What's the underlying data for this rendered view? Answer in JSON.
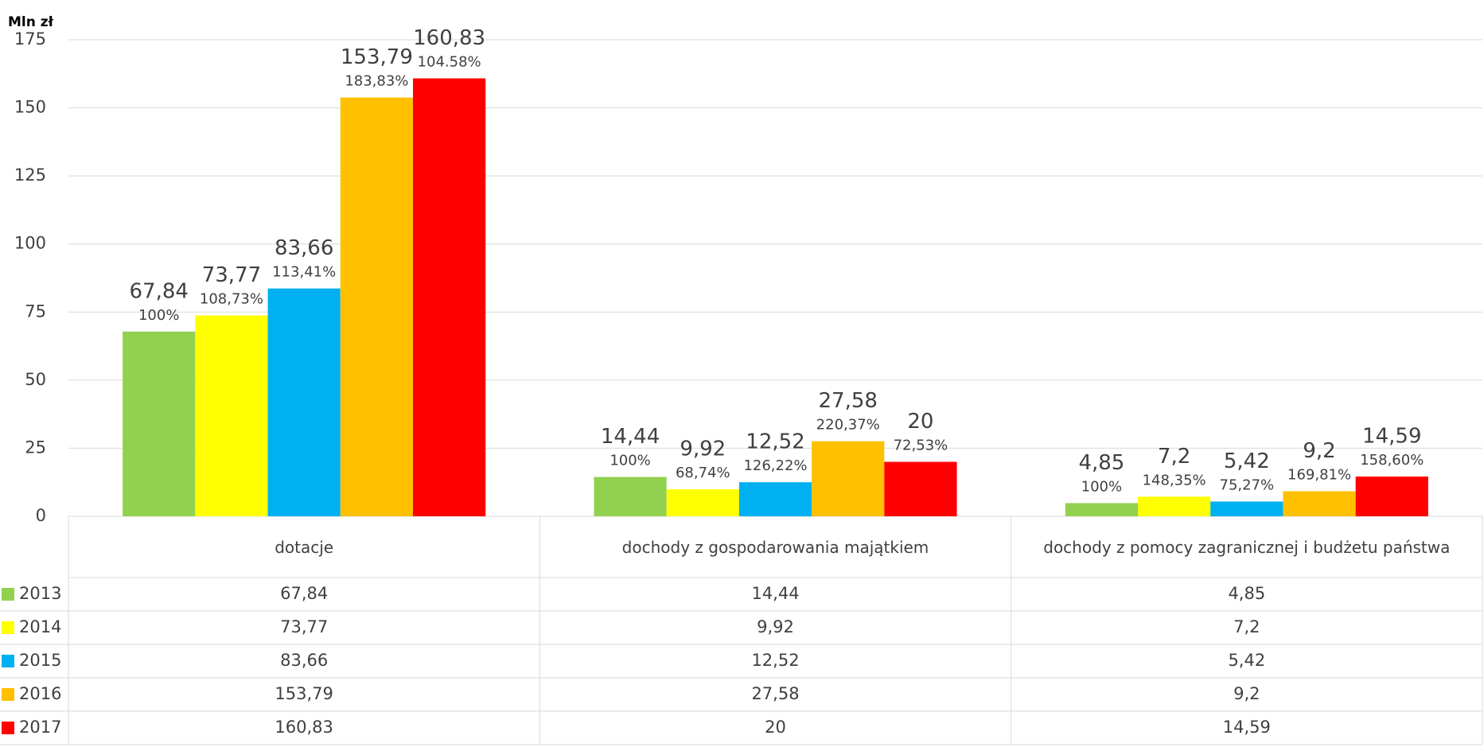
{
  "chart_data": {
    "type": "bar",
    "y_label": "Mln zł",
    "categories": [
      "dotacje",
      "dochody z gospodarowania majątkiem",
      "dochody z pomocy zagranicznej i budżetu państwa"
    ],
    "ylim": [
      0,
      175
    ],
    "yticks": [
      0,
      25,
      50,
      75,
      100,
      125,
      150,
      175
    ],
    "grid": true,
    "series": [
      {
        "name": "2013",
        "color": "#92d050",
        "values": [
          67.84,
          14.44,
          4.85
        ],
        "value_labels": [
          "67,84",
          "14,44",
          "4,85"
        ],
        "change_labels": [
          "100%",
          "100%",
          "100%"
        ]
      },
      {
        "name": "2014",
        "color": "#ffff00",
        "values": [
          73.77,
          9.92,
          7.2
        ],
        "value_labels": [
          "73,77",
          "9,92",
          "7,2"
        ],
        "change_labels": [
          "108,73%",
          "68,74%",
          "148,35%"
        ]
      },
      {
        "name": "2015",
        "color": "#00b0f0",
        "values": [
          83.66,
          12.52,
          5.42
        ],
        "value_labels": [
          "83,66",
          "12,52",
          "5,42"
        ],
        "change_labels": [
          "113,41%",
          "126,22%",
          "75,27%"
        ]
      },
      {
        "name": "2016",
        "color": "#ffc000",
        "values": [
          153.79,
          27.58,
          9.2
        ],
        "value_labels": [
          "153,79",
          "27,58",
          "9,2"
        ],
        "change_labels": [
          "183,83%",
          "220,37%",
          "169,81%"
        ]
      },
      {
        "name": "2017",
        "color": "#ff0000",
        "values": [
          160.83,
          20,
          14.59
        ],
        "value_labels": [
          "160,83",
          "20",
          "14,59"
        ],
        "change_labels": [
          "104.58%",
          "72,53%",
          "158,60%"
        ]
      }
    ]
  }
}
